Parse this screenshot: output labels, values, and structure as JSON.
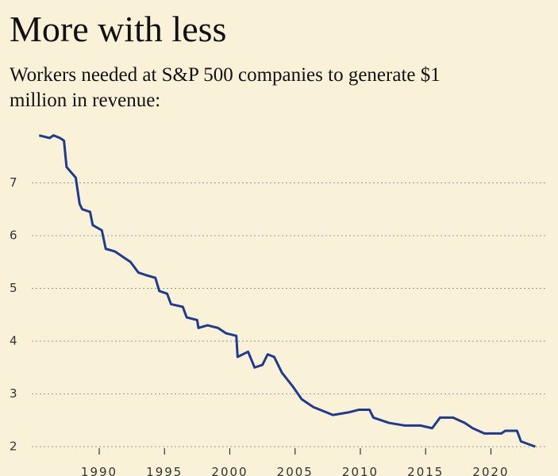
{
  "chart_data": {
    "type": "line",
    "title": "More with less",
    "subtitle": [
      "Workers needed at S&P 500 companies to generate $1",
      "million in revenue:"
    ],
    "x": [
      1985.4,
      1986.2,
      1986.5,
      1987.0,
      1987.3,
      1987.5,
      1988.2,
      1988.5,
      1988.7,
      1989.3,
      1989.5,
      1990.2,
      1990.5,
      1991.2,
      1991.5,
      1991.8,
      1992.4,
      1993.0,
      1993.6,
      1994.3,
      1994.6,
      1995.2,
      1995.5,
      1996.4,
      1996.7,
      1997.5,
      1997.6,
      1998.3,
      1999.1,
      1999.7,
      2000.5,
      2000.6,
      2001.4,
      2001.9,
      2002.5,
      2002.9,
      2003.4,
      2004.0,
      2004.8,
      2005.5,
      2006.4,
      2007.4,
      2007.9,
      2009.1,
      2009.9,
      2010.7,
      2011.0,
      2012.2,
      2013.4,
      2014.6,
      2015.5,
      2016.1,
      2017.1,
      2018.0,
      2018.6,
      2019.5,
      2020.8,
      2021.1,
      2022.0,
      2022.3,
      2023.4
    ],
    "series": [
      {
        "name": "Workers per $1 million revenue",
        "color": "#1f3a8f",
        "values": [
          7.9,
          7.85,
          7.9,
          7.85,
          7.8,
          7.3,
          7.1,
          6.6,
          6.5,
          6.45,
          6.2,
          6.1,
          5.75,
          5.7,
          5.65,
          5.6,
          5.5,
          5.3,
          5.25,
          5.2,
          4.95,
          4.9,
          4.7,
          4.65,
          4.45,
          4.4,
          4.25,
          4.3,
          4.25,
          4.15,
          4.1,
          3.7,
          3.8,
          3.5,
          3.55,
          3.75,
          3.7,
          3.4,
          3.15,
          2.9,
          2.75,
          2.65,
          2.6,
          2.65,
          2.7,
          2.7,
          2.55,
          2.45,
          2.4,
          2.4,
          2.35,
          2.55,
          2.55,
          2.45,
          2.35,
          2.25,
          2.25,
          2.3,
          2.3,
          2.1,
          2.0
        ]
      }
    ],
    "xlim": [
      1985,
      2025
    ],
    "xticks": [
      1990,
      1995,
      2000,
      2005,
      2010,
      2015,
      2020
    ],
    "ylim": [
      2,
      8
    ],
    "yticks": [
      2,
      3,
      4,
      5,
      6,
      7
    ],
    "grid": true
  }
}
